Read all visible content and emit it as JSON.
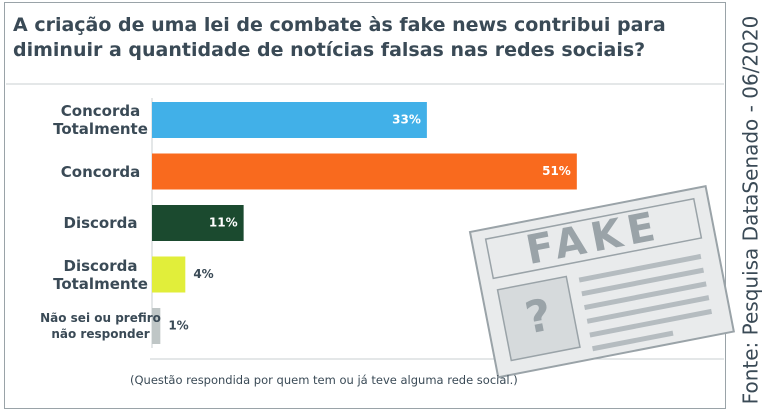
{
  "chart_data": {
    "type": "bar",
    "orientation": "horizontal",
    "title": "A criação de uma lei de combate às fake news contribui para diminuir a quantidade de notícias falsas nas redes sociais?",
    "categories": [
      "Concorda Totalmente",
      "Concorda",
      "Discorda",
      "Discorda Totalmente",
      "Não sei ou prefiro não responder"
    ],
    "values": [
      33,
      51,
      11,
      4,
      1
    ],
    "value_labels": [
      "33%",
      "51%",
      "11%",
      "4%",
      "1%"
    ],
    "colors": [
      "#41b0e8",
      "#f96a1e",
      "#1b4a2f",
      "#e1ee3a",
      "#bfc6c6"
    ],
    "footnote": "(Questão respondida por quem tem ou já teve alguma rede social.)",
    "source": "Fonte: Pesquisa DataSenado - 06/2020"
  },
  "illustration": {
    "headline": "FAKE",
    "symbol": "?"
  }
}
